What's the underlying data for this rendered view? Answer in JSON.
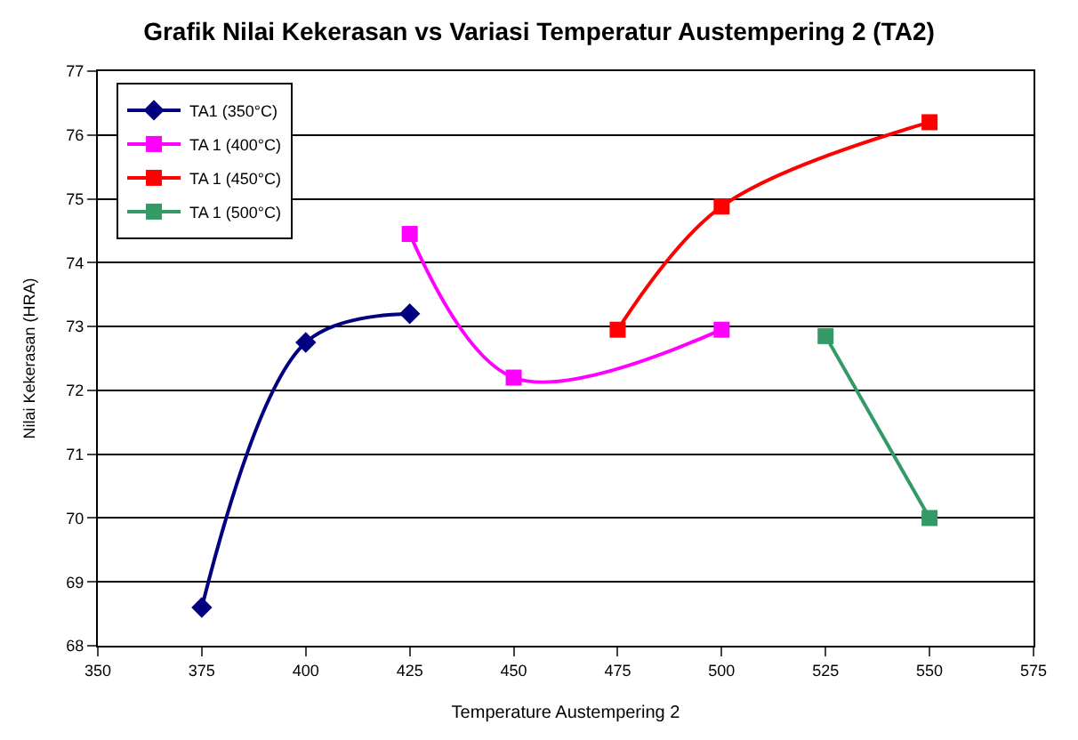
{
  "chart_data": {
    "type": "line",
    "title": "Grafik Nilai Kekerasan vs Variasi Temperatur Austempering 2 (TA2)",
    "xlabel": "Temperature Austempering 2",
    "ylabel": "Nilai Kekerasan (HRA)",
    "xlim": [
      350,
      575
    ],
    "xticks": [
      350,
      375,
      400,
      425,
      450,
      475,
      500,
      525,
      550,
      575
    ],
    "ylim": [
      68,
      77
    ],
    "yticks": [
      68,
      69,
      70,
      71,
      72,
      73,
      74,
      75,
      76,
      77
    ],
    "grid": "y",
    "legend": "top left",
    "series": [
      {
        "name": "TA1 (350°C)",
        "color": "#000080",
        "marker": "diamond",
        "x": [
          375,
          400,
          425
        ],
        "values": [
          68.6,
          72.75,
          73.2
        ]
      },
      {
        "name": "TA 1 (400°C)",
        "color": "#ff00ff",
        "marker": "square",
        "x": [
          425,
          450,
          500
        ],
        "values": [
          74.45,
          72.2,
          72.95
        ]
      },
      {
        "name": "TA 1 (450°C)",
        "color": "#ff0000",
        "marker": "square",
        "x": [
          475,
          500,
          550
        ],
        "values": [
          72.95,
          74.88,
          76.2
        ]
      },
      {
        "name": "TA 1 (500°C)",
        "color": "#339966",
        "marker": "square",
        "x": [
          525,
          550
        ],
        "values": [
          72.85,
          70.0
        ]
      }
    ]
  }
}
